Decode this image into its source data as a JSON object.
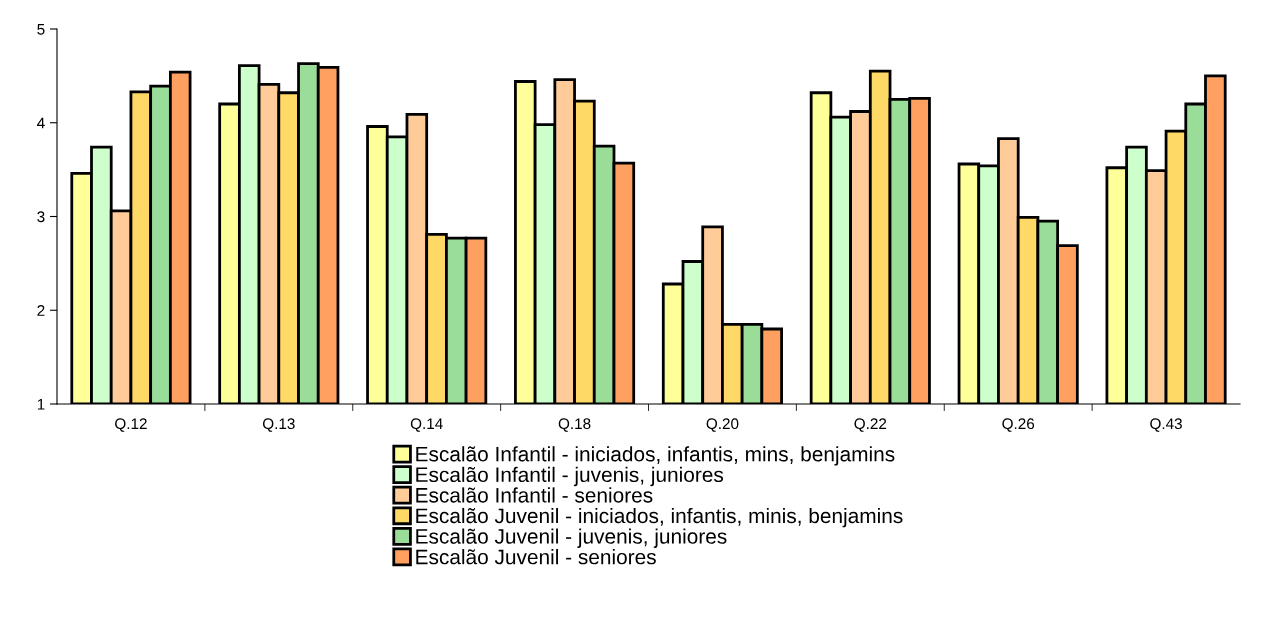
{
  "chart_data": {
    "type": "bar",
    "categories": [
      "Q.12",
      "Q.13",
      "Q.14",
      "Q.18",
      "Q.20",
      "Q.22",
      "Q.26",
      "Q.43"
    ],
    "series": [
      {
        "name": "Escalão Infantil - iniciados, infantis, mins, benjamins",
        "color": "#ffff99",
        "values": [
          3.46,
          4.2,
          3.96,
          4.44,
          2.28,
          4.32,
          3.56,
          3.52
        ]
      },
      {
        "name": "Escalão Infantil - juvenis, juniores",
        "color": "#ccffcc",
        "values": [
          3.74,
          4.61,
          3.85,
          3.98,
          2.52,
          4.06,
          3.54,
          3.74
        ]
      },
      {
        "name": "Escalão Infantil - seniores",
        "color": "#ffcc99",
        "values": [
          3.06,
          4.41,
          4.09,
          4.46,
          2.89,
          4.12,
          3.83,
          3.49
        ]
      },
      {
        "name": "Escalão Juvenil - iniciados, infantis, minis, benjamins",
        "color": "#ffd966",
        "values": [
          4.33,
          4.32,
          2.81,
          4.23,
          1.85,
          4.55,
          2.99,
          3.91
        ]
      },
      {
        "name": "Escalão Juvenil - juvenis, juniores",
        "color": "#99dd99",
        "values": [
          4.39,
          4.63,
          2.77,
          3.75,
          1.85,
          4.25,
          2.95,
          4.2
        ]
      },
      {
        "name": "Escalão Juvenil - seniores",
        "color": "#ffa060",
        "values": [
          4.54,
          4.59,
          2.77,
          3.57,
          1.8,
          4.26,
          2.69,
          4.5
        ]
      }
    ],
    "ylim": [
      1,
      5
    ],
    "yticks": [
      1,
      2,
      3,
      4,
      5
    ],
    "grid": false,
    "legend": "bottom"
  }
}
